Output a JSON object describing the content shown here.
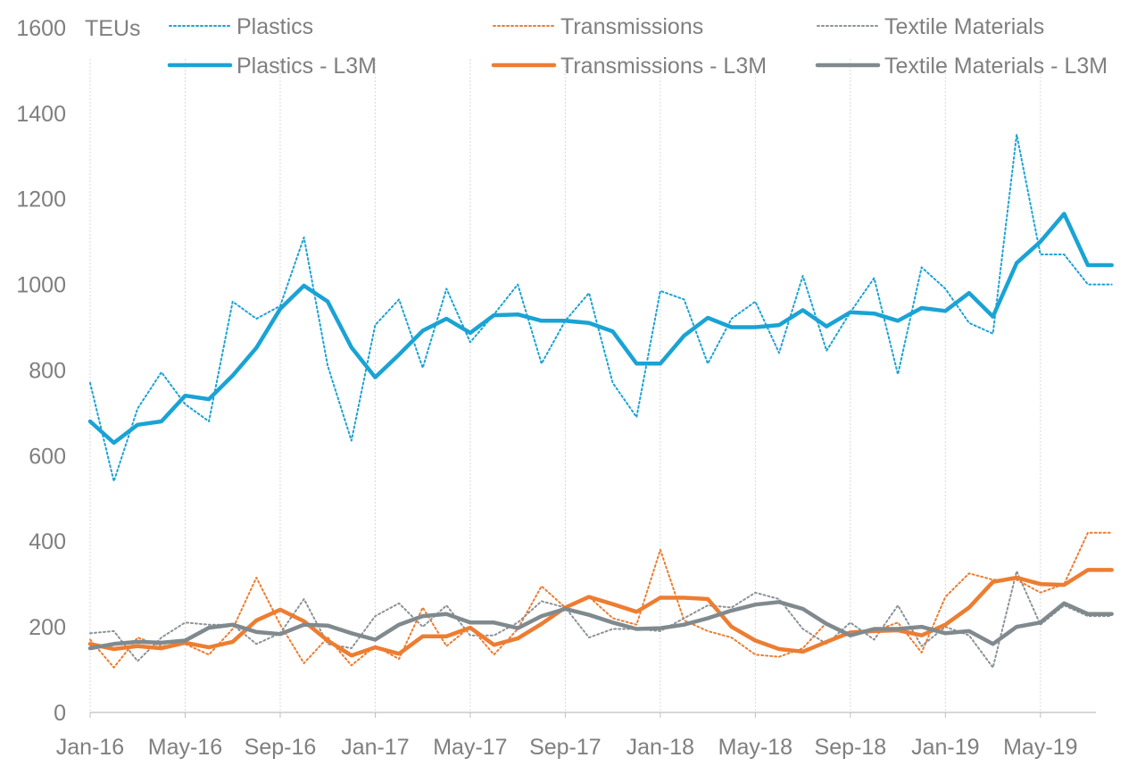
{
  "chart_data": {
    "type": "line",
    "y_unit_label": "TEUs",
    "ylim": [
      0,
      1600
    ],
    "y_ticks": [
      0,
      200,
      400,
      600,
      800,
      1000,
      1200,
      1400,
      1600
    ],
    "x": [
      "Jan-16",
      "Feb-16",
      "Mar-16",
      "Apr-16",
      "May-16",
      "Jun-16",
      "Jul-16",
      "Aug-16",
      "Sep-16",
      "Oct-16",
      "Nov-16",
      "Dec-16",
      "Jan-17",
      "Feb-17",
      "Mar-17",
      "Apr-17",
      "May-17",
      "Jun-17",
      "Jul-17",
      "Aug-17",
      "Sep-17",
      "Oct-17",
      "Nov-17",
      "Dec-17",
      "Jan-18",
      "Feb-18",
      "Mar-18",
      "Apr-18",
      "May-18",
      "Jun-18",
      "Jul-18",
      "Aug-18",
      "Sep-18",
      "Oct-18",
      "Nov-18",
      "Dec-18",
      "Jan-19",
      "Feb-19",
      "Mar-19",
      "Apr-19",
      "May-19",
      "Jun-19",
      "Jul-19",
      "Aug-19"
    ],
    "x_tick_labels": [
      "Jan-16",
      "May-16",
      "Sep-16",
      "Jan-17",
      "May-17",
      "Sep-17",
      "Jan-18",
      "May-18",
      "Sep-18",
      "Jan-19",
      "May-19"
    ],
    "grid": "vertical",
    "legend_position": "top",
    "series": [
      {
        "name": "Plastics",
        "style": "dotted",
        "color": "#1aa3d4",
        "values": [
          770,
          540,
          710,
          795,
          720,
          680,
          960,
          920,
          950,
          1110,
          810,
          635,
          905,
          965,
          805,
          990,
          865,
          930,
          1000,
          815,
          915,
          980,
          770,
          690,
          985,
          965,
          815,
          920,
          960,
          840,
          1020,
          845,
          935,
          1015,
          790,
          1040,
          990,
          910,
          885,
          1350,
          1070,
          1070,
          1000,
          1000
        ]
      },
      {
        "name": "Transmissions",
        "style": "dotted",
        "color": "#ed7d31",
        "values": [
          170,
          105,
          175,
          155,
          160,
          135,
          195,
          315,
          205,
          115,
          175,
          110,
          155,
          125,
          245,
          155,
          200,
          135,
          195,
          295,
          245,
          270,
          220,
          205,
          380,
          215,
          190,
          175,
          135,
          130,
          150,
          210,
          180,
          190,
          210,
          140,
          270,
          325,
          310,
          310,
          280,
          300,
          420,
          420
        ]
      },
      {
        "name": "Textile Materials",
        "style": "dotted",
        "color": "#8c9295",
        "values": [
          185,
          190,
          120,
          175,
          210,
          205,
          205,
          160,
          185,
          265,
          160,
          150,
          225,
          255,
          200,
          250,
          180,
          180,
          210,
          260,
          245,
          175,
          195,
          195,
          190,
          220,
          250,
          245,
          280,
          265,
          195,
          160,
          210,
          170,
          250,
          155,
          200,
          180,
          105,
          330,
          205,
          250,
          225,
          225
        ]
      },
      {
        "name": "Plastics - L3M",
        "style": "solid",
        "color": "#1aa3d4",
        "values": [
          680,
          630,
          672,
          680,
          740,
          732,
          787,
          852,
          943,
          997,
          960,
          853,
          783,
          836,
          892,
          920,
          887,
          928,
          930,
          915,
          915,
          910,
          890,
          815,
          815,
          880,
          922,
          900,
          900,
          905,
          940,
          902,
          935,
          932,
          915,
          945,
          938,
          980,
          925,
          1050,
          1100,
          1165,
          1045,
          1045
        ]
      },
      {
        "name": "Transmissions - L3M",
        "style": "solid",
        "color": "#ed7d31",
        "values": [
          160,
          148,
          155,
          150,
          163,
          152,
          165,
          215,
          240,
          213,
          168,
          133,
          152,
          137,
          178,
          178,
          198,
          158,
          173,
          207,
          245,
          270,
          253,
          235,
          268,
          268,
          265,
          200,
          168,
          148,
          142,
          165,
          187,
          190,
          192,
          180,
          205,
          245,
          305,
          315,
          300,
          298,
          333,
          333
        ]
      },
      {
        "name": "Textile Materials - L3M",
        "style": "solid",
        "color": "#808a8e",
        "values": [
          150,
          160,
          165,
          163,
          168,
          198,
          205,
          188,
          183,
          205,
          203,
          185,
          170,
          205,
          225,
          230,
          210,
          210,
          197,
          225,
          242,
          228,
          210,
          195,
          197,
          205,
          220,
          238,
          252,
          258,
          242,
          207,
          180,
          195,
          195,
          200,
          185,
          190,
          160,
          200,
          210,
          255,
          230,
          230
        ]
      }
    ],
    "legend_rows": [
      [
        "Plastics",
        "Transmissions",
        "Textile Materials"
      ],
      [
        "Plastics - L3M",
        "Transmissions - L3M",
        "Textile Materials - L3M"
      ]
    ]
  }
}
